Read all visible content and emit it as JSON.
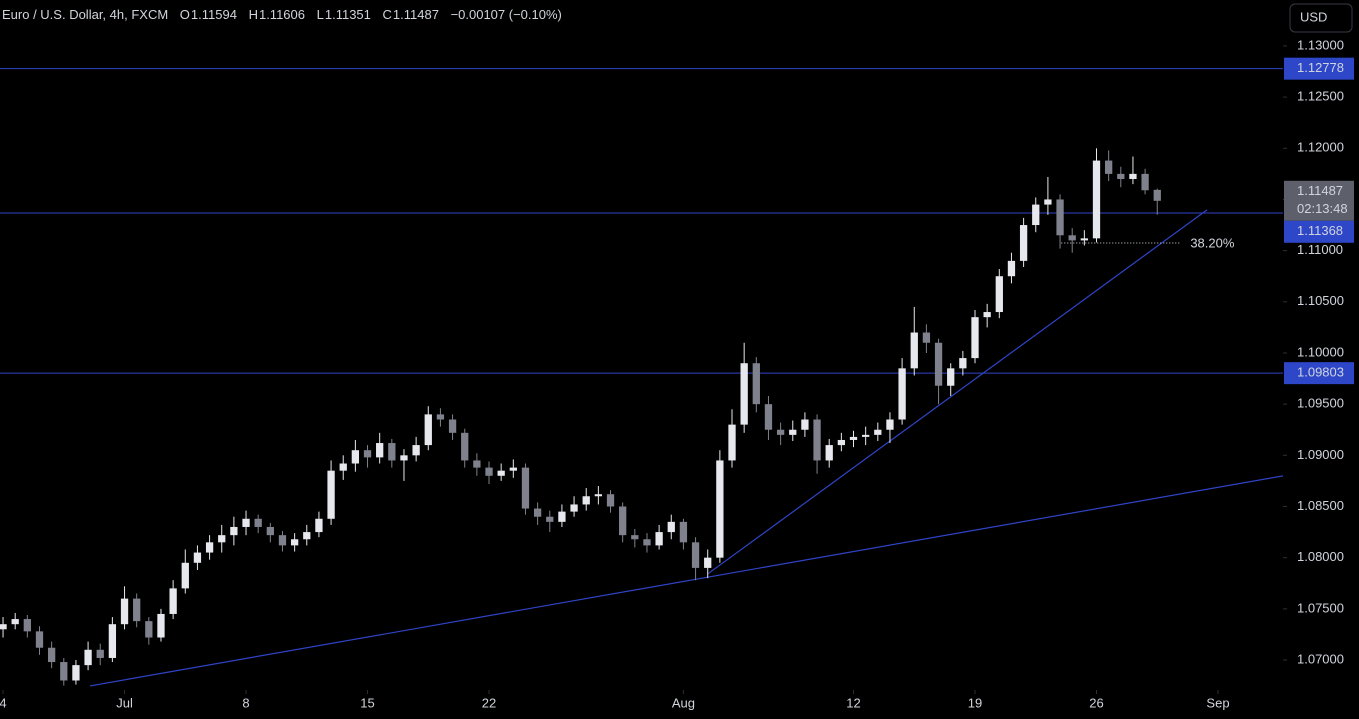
{
  "chart_data": {
    "type": "candlestick",
    "title": "Euro / U.S. Dollar, 4h, FXCM",
    "ohlc_labels": [
      "O",
      "H",
      "L",
      "C"
    ],
    "change": "−0.00107 (−0.10%)",
    "currency": "USD",
    "countdown": "02:13:48",
    "ylim": [
      1.06707,
      1.13449
    ],
    "xlim": [
      -0.25,
      105.35
    ],
    "yticks": [
      {
        "value": 1.13,
        "label": "1.13000"
      },
      {
        "value": 1.125,
        "label": "1.12500"
      },
      {
        "value": 1.12,
        "label": "1.12000"
      },
      {
        "value": 1.115,
        "label": "1.11500"
      },
      {
        "value": 1.11,
        "label": "1.11000"
      },
      {
        "value": 1.105,
        "label": "1.10500"
      },
      {
        "value": 1.1,
        "label": "1.10000"
      },
      {
        "value": 1.095,
        "label": "1.09500"
      },
      {
        "value": 1.09,
        "label": "1.09000"
      },
      {
        "value": 1.085,
        "label": "1.08500"
      },
      {
        "value": 1.08,
        "label": "1.08000"
      },
      {
        "value": 1.075,
        "label": "1.07500"
      },
      {
        "value": 1.07,
        "label": "1.07000"
      }
    ],
    "xticks": [
      {
        "value": 0,
        "label": "4"
      },
      {
        "value": 10,
        "label": "Jul"
      },
      {
        "value": 20,
        "label": "8"
      },
      {
        "value": 30,
        "label": "15"
      },
      {
        "value": 40,
        "label": "22"
      },
      {
        "value": 56,
        "label": "Aug"
      },
      {
        "value": 70,
        "label": "12"
      },
      {
        "value": 80,
        "label": "19"
      },
      {
        "value": 90,
        "label": "26"
      },
      {
        "value": 100,
        "label": "Sep"
      }
    ],
    "up_color": "#e6e8ee",
    "down_color": "#7f828c",
    "line_color": "#2f44c8",
    "levels": [
      1.12778,
      1.11368,
      1.09803
    ],
    "trendlines": [
      {
        "x": [
          7.16,
          105.35
        ],
        "y": [
          1.06747,
          1.08799
        ]
      },
      {
        "x": [
          58.0,
          99.1
        ],
        "y": [
          1.07841,
          1.11398
        ]
      }
    ],
    "fib": {
      "label": "38.20%",
      "value": 1.11075,
      "x": [
        87.1,
        96.9
      ]
    },
    "candles": [
      [
        1.073,
        1.0742,
        1.0722,
        1.0735
      ],
      [
        1.0735,
        1.0746,
        1.073,
        1.074
      ],
      [
        1.074,
        1.0744,
        1.0722,
        1.0728
      ],
      [
        1.0728,
        1.0733,
        1.0705,
        1.0712
      ],
      [
        1.0712,
        1.0718,
        1.0692,
        1.0698
      ],
      [
        1.0698,
        1.0702,
        1.0675,
        1.068
      ],
      [
        1.068,
        1.07,
        1.0676,
        1.0695
      ],
      [
        1.0695,
        1.0718,
        1.069,
        1.071
      ],
      [
        1.071,
        1.0716,
        1.0695,
        1.0702
      ],
      [
        1.0702,
        1.0742,
        1.0698,
        1.0735
      ],
      [
        1.0735,
        1.0772,
        1.073,
        1.076
      ],
      [
        1.076,
        1.0765,
        1.0732,
        1.0738
      ],
      [
        1.0738,
        1.0742,
        1.0715,
        1.0722
      ],
      [
        1.0722,
        1.075,
        1.0718,
        1.0745
      ],
      [
        1.0745,
        1.0778,
        1.074,
        1.077
      ],
      [
        1.077,
        1.0808,
        1.0765,
        1.0795
      ],
      [
        1.0795,
        1.0812,
        1.0788,
        1.0805
      ],
      [
        1.0805,
        1.0822,
        1.0798,
        1.0815
      ],
      [
        1.0815,
        1.0832,
        1.0805,
        1.0822
      ],
      [
        1.0822,
        1.084,
        1.0812,
        1.083
      ],
      [
        1.083,
        1.0846,
        1.0822,
        1.0838
      ],
      [
        1.0838,
        1.0842,
        1.0824,
        1.083
      ],
      [
        1.083,
        1.0834,
        1.0815,
        1.0822
      ],
      [
        1.0822,
        1.0826,
        1.0806,
        1.0812
      ],
      [
        1.0812,
        1.0824,
        1.0806,
        1.0818
      ],
      [
        1.0818,
        1.0832,
        1.0812,
        1.0825
      ],
      [
        1.0825,
        1.0845,
        1.082,
        1.0838
      ],
      [
        1.0838,
        1.0895,
        1.0832,
        1.0885
      ],
      [
        1.0885,
        1.09,
        1.0876,
        1.0892
      ],
      [
        1.0892,
        1.0915,
        1.0884,
        1.0905
      ],
      [
        1.0905,
        1.091,
        1.0888,
        1.0898
      ],
      [
        1.0898,
        1.0922,
        1.0892,
        1.0912
      ],
      [
        1.0912,
        1.0916,
        1.0888,
        1.0895
      ],
      [
        1.0895,
        1.0906,
        1.0875,
        1.09
      ],
      [
        1.09,
        1.0918,
        1.0894,
        1.091
      ],
      [
        1.091,
        1.0948,
        1.0905,
        1.094
      ],
      [
        1.094,
        1.0946,
        1.0928,
        1.0935
      ],
      [
        1.0935,
        1.094,
        1.0915,
        1.0922
      ],
      [
        1.0922,
        1.0926,
        1.0888,
        1.0895
      ],
      [
        1.0895,
        1.0902,
        1.088,
        1.0888
      ],
      [
        1.0888,
        1.0894,
        1.0872,
        1.088
      ],
      [
        1.088,
        1.0892,
        1.0875,
        1.0885
      ],
      [
        1.0885,
        1.0896,
        1.0878,
        1.0888
      ],
      [
        1.0888,
        1.0892,
        1.0842,
        1.0848
      ],
      [
        1.0848,
        1.0854,
        1.0832,
        1.084
      ],
      [
        1.084,
        1.0846,
        1.0825,
        1.0835
      ],
      [
        1.0835,
        1.0852,
        1.083,
        1.0845
      ],
      [
        1.0845,
        1.086,
        1.084,
        1.0852
      ],
      [
        1.0852,
        1.0868,
        1.0846,
        1.086
      ],
      [
        1.086,
        1.087,
        1.0852,
        1.0862
      ],
      [
        1.0862,
        1.0866,
        1.0844,
        1.085
      ],
      [
        1.085,
        1.0854,
        1.0815,
        1.0822
      ],
      [
        1.0822,
        1.0828,
        1.081,
        1.0818
      ],
      [
        1.0818,
        1.0824,
        1.0805,
        1.0812
      ],
      [
        1.0812,
        1.0832,
        1.0808,
        1.0825
      ],
      [
        1.0825,
        1.0842,
        1.0818,
        1.0835
      ],
      [
        1.0835,
        1.0838,
        1.0808,
        1.0815
      ],
      [
        1.0815,
        1.082,
        1.0778,
        1.079
      ],
      [
        1.079,
        1.0808,
        1.078,
        1.08
      ],
      [
        1.08,
        1.0905,
        1.0795,
        1.0895
      ],
      [
        1.0895,
        1.0945,
        1.0888,
        1.093
      ],
      [
        1.093,
        1.101,
        1.0922,
        1.099
      ],
      [
        1.099,
        1.0996,
        1.0942,
        1.095
      ],
      [
        1.095,
        1.0958,
        1.0915,
        1.0925
      ],
      [
        1.0925,
        1.0932,
        1.091,
        1.092
      ],
      [
        1.092,
        1.0934,
        1.0914,
        1.0925
      ],
      [
        1.0925,
        1.0942,
        1.0918,
        1.0935
      ],
      [
        1.0935,
        1.094,
        1.0882,
        1.0895
      ],
      [
        1.0895,
        1.0916,
        1.0888,
        1.091
      ],
      [
        1.091,
        1.0922,
        1.0904,
        1.0915
      ],
      [
        1.0915,
        1.0924,
        1.0908,
        1.0918
      ],
      [
        1.0918,
        1.0928,
        1.091,
        1.092
      ],
      [
        1.092,
        1.0932,
        1.0914,
        1.0925
      ],
      [
        1.0925,
        1.0942,
        1.0912,
        1.0935
      ],
      [
        1.0935,
        1.0995,
        1.093,
        1.0985
      ],
      [
        1.0985,
        1.1045,
        1.0978,
        1.102
      ],
      [
        1.102,
        1.1028,
        1.1,
        1.101
      ],
      [
        1.101,
        1.1014,
        1.095,
        1.0968
      ],
      [
        1.0968,
        1.099,
        1.0958,
        1.0985
      ],
      [
        1.0985,
        1.1002,
        1.0978,
        1.0995
      ],
      [
        1.0995,
        1.1042,
        1.099,
        1.1035
      ],
      [
        1.1035,
        1.1048,
        1.1025,
        1.104
      ],
      [
        1.104,
        1.1082,
        1.1034,
        1.1075
      ],
      [
        1.1075,
        1.1098,
        1.1068,
        1.109
      ],
      [
        1.109,
        1.1132,
        1.1084,
        1.1125
      ],
      [
        1.1125,
        1.1152,
        1.1118,
        1.1145
      ],
      [
        1.1145,
        1.1172,
        1.1135,
        1.115
      ],
      [
        1.115,
        1.1155,
        1.1102,
        1.1115
      ],
      [
        1.1115,
        1.1122,
        1.1098,
        1.111
      ],
      [
        1.111,
        1.112,
        1.1105,
        1.1112
      ],
      [
        1.1112,
        1.12,
        1.1108,
        1.1188
      ],
      [
        1.1188,
        1.1198,
        1.1168,
        1.1175
      ],
      [
        1.1175,
        1.1182,
        1.1162,
        1.117
      ],
      [
        1.117,
        1.1192,
        1.1165,
        1.1175
      ],
      [
        1.1175,
        1.118,
        1.1155,
        1.1159
      ],
      [
        1.11594,
        1.11606,
        1.11351,
        1.11487
      ]
    ]
  }
}
